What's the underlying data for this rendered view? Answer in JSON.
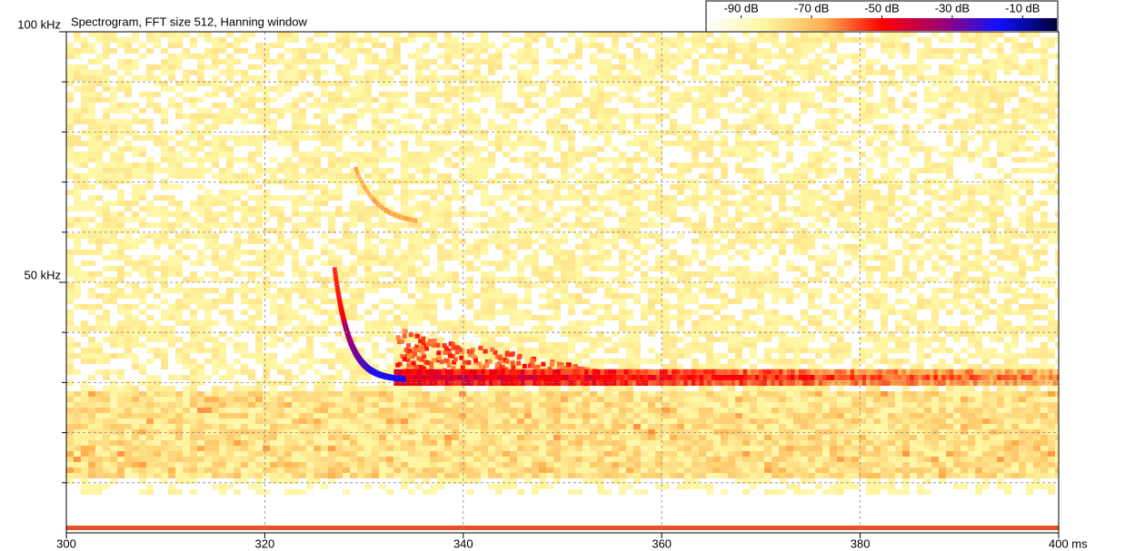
{
  "chart_data": {
    "type": "spectrogram",
    "title": "Spectrogram, FFT size 512, Hanning window",
    "xlim": [
      300,
      400
    ],
    "xticks": [
      300,
      320,
      340,
      360,
      380,
      {
        "value": 400,
        "label": "400 ms"
      }
    ],
    "ylim": [
      0,
      100
    ],
    "yticks": [
      {
        "value": 50,
        "label": "50 kHz"
      },
      {
        "value": 100,
        "label": "100 kHz"
      }
    ],
    "yminorticks": [
      10,
      20,
      30,
      40,
      60,
      70,
      80,
      90
    ],
    "grid": true,
    "colorbar": {
      "lim": [
        -100,
        0
      ],
      "ticks": [
        {
          "value": -90,
          "label": "-90 dB"
        },
        {
          "value": -70,
          "label": "-70 dB"
        },
        {
          "value": -50,
          "label": "-50 dB"
        },
        {
          "value": -30,
          "label": "-30 dB"
        },
        {
          "value": -10,
          "label": "-10 dB"
        }
      ],
      "colors": [
        "#ffffff",
        "#fff6a0",
        "#ffb050",
        "#ff0000",
        "#a00070",
        "#1010ff",
        "#000038"
      ]
    }
  }
}
